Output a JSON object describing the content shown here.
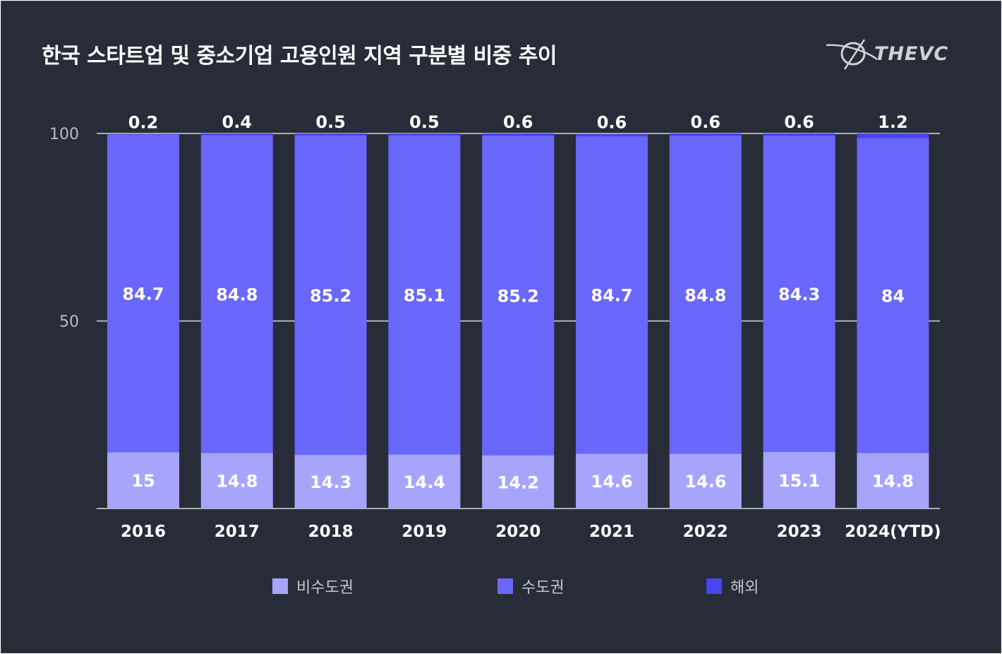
{
  "header": {
    "title": "한국 스타트업 및 중소기업 고용인원 지역 구분별 비중 추이",
    "logo_text": "THEVC"
  },
  "colors": {
    "background": "#272c38",
    "non_capital": "#a7a5fb",
    "capital": "#6967fc",
    "overseas": "#4744f0",
    "grid": "#d8d8de",
    "label": "#ffffff",
    "tick": "#b9bbc4"
  },
  "chart_data": {
    "type": "bar",
    "stacked": true,
    "title": "한국 스타트업 및 중소기업 고용인원 지역 구분별 비중 추이",
    "xlabel": "",
    "ylabel": "",
    "ylim": [
      0,
      100
    ],
    "yticks": [
      "100",
      "50"
    ],
    "grid": true,
    "legend_position": "bottom",
    "categories": [
      "2016",
      "2017",
      "2018",
      "2019",
      "2020",
      "2021",
      "2022",
      "2023",
      "2024(YTD)"
    ],
    "series": [
      {
        "name": "비수도권",
        "values": [
          15,
          14.8,
          14.3,
          14.4,
          14.2,
          14.6,
          14.6,
          15.1,
          14.8
        ],
        "labels": [
          "15",
          "14.8",
          "14.3",
          "14.4",
          "14.2",
          "14.6",
          "14.6",
          "15.1",
          "14.8"
        ]
      },
      {
        "name": "수도권",
        "values": [
          84.7,
          84.8,
          85.2,
          85.1,
          85.2,
          84.7,
          84.8,
          84.3,
          84
        ],
        "labels": [
          "84.7",
          "84.8",
          "85.2",
          "85.1",
          "85.2",
          "84.7",
          "84.8",
          "84.3",
          "84"
        ]
      },
      {
        "name": "해외",
        "values": [
          0.2,
          0.4,
          0.5,
          0.5,
          0.6,
          0.6,
          0.6,
          0.6,
          1.2
        ],
        "labels": [
          "0.2",
          "0.4",
          "0.5",
          "0.5",
          "0.6",
          "0.6",
          "0.6",
          "0.6",
          "1.2"
        ]
      }
    ]
  },
  "legend": {
    "items": [
      {
        "label": "비수도권",
        "color": "#a7a5fb"
      },
      {
        "label": "수도권",
        "color": "#6967fc"
      },
      {
        "label": "해외",
        "color": "#4744f0"
      }
    ]
  }
}
